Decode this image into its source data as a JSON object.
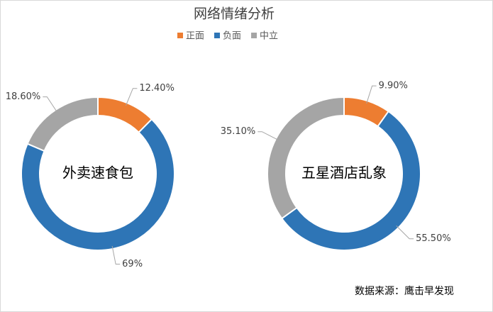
{
  "title": "网络情绪分析",
  "legend": {
    "labels": [
      "正面",
      "负面",
      "中立"
    ],
    "colors": [
      "#ed7d31",
      "#2e75b6",
      "#a5a5a5"
    ]
  },
  "chart_data": [
    {
      "type": "pie",
      "center_label": "外卖速食包",
      "values": [
        12.4,
        69,
        18.6
      ],
      "value_labels": [
        "12.40%",
        "69%",
        "18.60%"
      ]
    },
    {
      "type": "pie",
      "center_label": "五星酒店乱象",
      "values": [
        9.9,
        55.5,
        35.1
      ],
      "value_labels": [
        "9.90%",
        "55.50%",
        "35.10%"
      ]
    }
  ],
  "source": "数据来源：鹰击早发现"
}
